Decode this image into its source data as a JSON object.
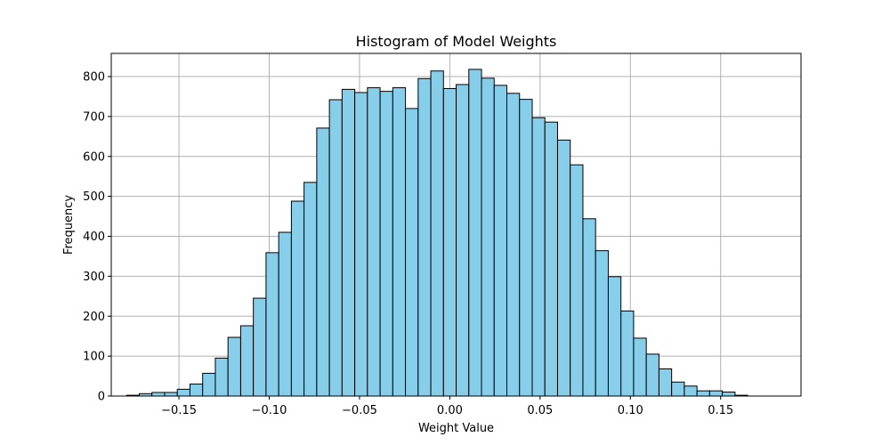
{
  "chart_data": {
    "type": "bar",
    "title": "Histogram of Model Weights",
    "xlabel": "Weight Value",
    "ylabel": "Frequency",
    "xlim": [
      -0.1875,
      0.1945
    ],
    "ylim": [
      0,
      858
    ],
    "xticks": [
      -0.15,
      -0.1,
      -0.05,
      0.0,
      0.05,
      0.1,
      0.15
    ],
    "xtick_labels": [
      "−0.15",
      "−0.10",
      "−0.05",
      "0.00",
      "0.05",
      "0.10",
      "0.15"
    ],
    "yticks": [
      0,
      100,
      200,
      300,
      400,
      500,
      600,
      700,
      800
    ],
    "ytick_labels": [
      "0",
      "100",
      "200",
      "300",
      "400",
      "500",
      "600",
      "700",
      "800"
    ],
    "grid": true,
    "bin_start": -0.179,
    "bin_width": 0.00702,
    "values": [
      2,
      6,
      9,
      9,
      17,
      30,
      57,
      95,
      147,
      176,
      245,
      359,
      410,
      488,
      535,
      671,
      742,
      768,
      760,
      772,
      763,
      772,
      720,
      795,
      814,
      770,
      780,
      818,
      796,
      778,
      758,
      743,
      697,
      686,
      641,
      579,
      444,
      364,
      299,
      213,
      145,
      105,
      68,
      35,
      25,
      13,
      13,
      10,
      2
    ],
    "colors": {
      "bar_fill": "#87ceeb",
      "bar_edge": "#000000",
      "grid": "#b0b0b0"
    }
  }
}
